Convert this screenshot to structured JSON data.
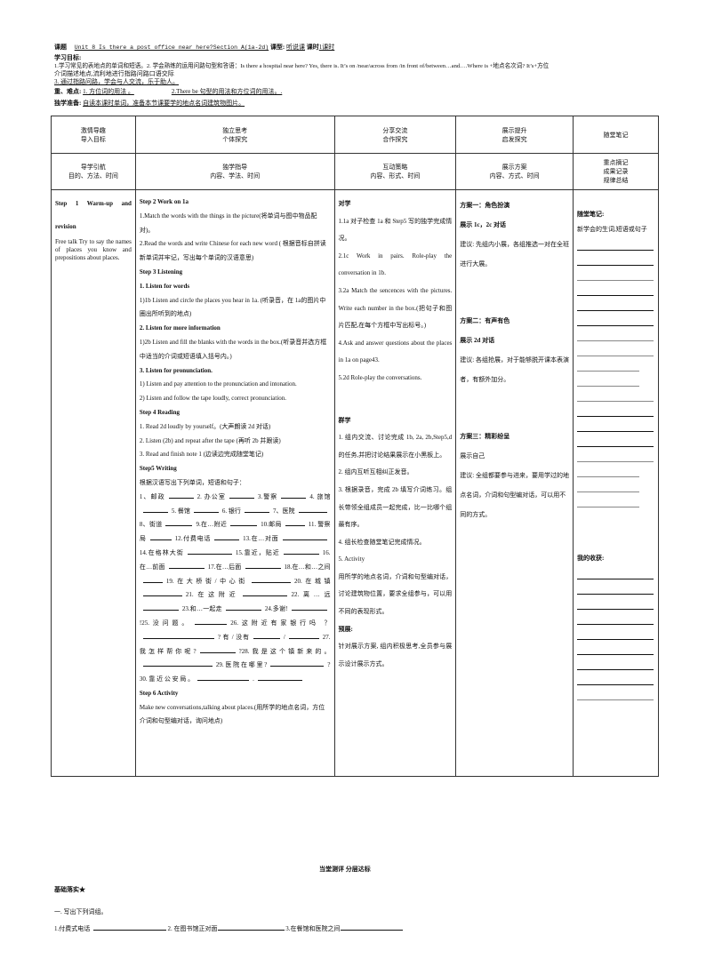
{
  "header": {
    "topic_label": "课题",
    "topic": "Unit 8 Is there a post office near here?Section A(1a-2d)",
    "type_label": "课型:",
    "type": "听说课",
    "period_label": "课时",
    "period": "1课时",
    "goals_label": "学习目标:",
    "goal_1": "1.学习常见的表地点的单词和短语。2. 学会熟练的运用问路句型和答语：Is there a hospital near here?    Yes, there is. It’s on /near/across  from /in front of/between…and.…Where  is +地点名次词? It’s+方位",
    "goal_1b": "介词描述地点,流利地进行指路问路口语交际",
    "goal_3": "3. 通过指路问路，学会与人交流，乐于助人。",
    "keypoints_label": "重、难点:",
    "keypoint_1": "1. 方位词的用法 。",
    "keypoint_2": "2.There be 句型的用法和方位词的用法。.",
    "prep_label": "独学准备:",
    "prep": "自读本课时单词，准备本节课要学的地点名词建筑物图片。"
  },
  "table": {
    "headers": [
      [
        "激情导趣",
        "导入目标"
      ],
      [
        "独立思考",
        "个体探究"
      ],
      [
        "分享交流",
        "合作探究"
      ],
      [
        "展示提升",
        "启发探究"
      ],
      [
        "随堂笔记"
      ]
    ],
    "subheaders": [
      [
        "导学引航",
        "目的、方法、时间"
      ],
      [
        "独学指导",
        "内容、学法、时间"
      ],
      [
        "互动策略",
        "内容、形式、时间"
      ],
      [
        "展示方案",
        "内容、方式、时间"
      ],
      [
        "重点摘记",
        "成果记录",
        "规律总结"
      ]
    ],
    "col1": {
      "step": "Step 1  Warm-up  and revision",
      "text": "Free talk    Try to say the names of places you know and prepositions about places."
    },
    "col2": [
      {
        "t": "Step 2 Work on 1a",
        "b": true
      },
      {
        "t": "1.Match the    words with the things in the picture(将单词与图中物品配对)。"
      },
      {
        "t": "2.Read the words and write Chinese for each new word ( 根据音标自拼读新单词并牢记，写出每个单词的汉语意思)"
      },
      {
        "t": "Step 3 Listening",
        "b": true
      },
      {
        "t": "1.    Listen for words",
        "b": true
      },
      {
        "t": "1)1b Listen and circle  the places you hear in 1a. (听录音，在 1a的图片中圈出所听到的地点)"
      },
      {
        "t": "2.    Listen for more information",
        "b": true
      },
      {
        "t": "1)2b Listen and fill the blanks with the words in the box.(听录音并选方框中适当的介词或短语填入括号内。)"
      },
      {
        "t": "3.    Listen for pronunciation.",
        "b": true
      },
      {
        "t": "1) Listen and pay attention to the pronunciation and intonation."
      },
      {
        "t": "2) Listen and follow the tape loudly, correct pronunciation."
      },
      {
        "t": "Step 4 Reading",
        "b": true
      },
      {
        "t": "1.    Read 2d loudly by yourself。(大声朗读 2d 对话)"
      },
      {
        "t": "2.    Listen (2b) and repeat after the tape (再听 2b 并跟读)"
      },
      {
        "t": "3.    Read and finish note 1 (边读边完成随堂笔记)"
      },
      {
        "t": "Step5 Writing",
        "b": true
      },
      {
        "t": "根据汉语写出下列单词，短语和句子："
      }
    ],
    "writing": [
      "1、邮政",
      "2. 办公室",
      "3.警察",
      "4. 旅馆",
      "5. 餐馆",
      "6. 银行",
      "7、医院",
      "8、街道",
      "9.在…附近",
      "10.邮局",
      "11. 警察局",
      "12.付费电话",
      "13.在…对面",
      "14.在格林大街",
      "15.靠近，贴近",
      "16.在…前面",
      "17.在…后面",
      "18.在…和…之间",
      "19.在大桥街/中心街",
      "20.在城镇",
      "21.在这附近",
      "22.离…远",
      "23.和…一起走",
      "24.多谢!",
      "!25.没问题。",
      "26.这附近有家银行吗 ？",
      "? 有 / 没有",
      "/",
      "27.我怎样帮你呢?",
      "?28.我是这个镇新来的。",
      "29. 医 院 在 哪 里 ?",
      "?30.   靠  近  公  安  局  。",
      "."
    ],
    "step6": {
      "title": "Step 6 Activity",
      "text": "Make new conversations,talking about places.(用所学的地点名词，方位介词和句型编对话，询问地点)"
    },
    "col3": [
      "对学",
      "1.1a 对子检查 1a 和 Step5 写的独学完成情况。",
      "2.1c  Work  in  pairs.  Role-play  the conversation in 1b.",
      "3.2a  Match  the  sencences  with  the pictures. Write each    number in the box.(把句子和图片匹配,在每个方框中写出标号。)",
      "4.Ask  and  answer  questions  about  the places in 1a on page43.",
      "5.2d    Role-play the conversations.",
      "群学",
      "1. 组内交流、讨论完成 1b, 2a, 2b,Step5,d 的任务,并把讨论结果展示在小黑板上。",
      "2. 组内互听互相纠正发音。",
      "3. 根据录音，完成 2b 填写介词练习。组长带领全组成员一起完成，比一比哪个组最有序。",
      "4. 组长检查随堂笔记完成情况。",
      "5. Activity",
      "用所学的地点名词，介词和句型编对话，讨论建筑物位置，要求全组参与，可以用不同的表现形式。",
      "预展:",
      "针对展示方案, 组内积极思考,全员参与展示设计展示方式。"
    ],
    "col4": [
      {
        "title": "方案一：角色扮演",
        "show": "展示 1c，2c 对话",
        "advice": "建议: 先组内小展，各组推选一对在全班进行大展。"
      },
      {
        "title": "方案二：有声有色",
        "show": "展示 2d 对话",
        "advice": "建议: 各组抢展，对于能够脱开课本表演者，有额外加分。"
      },
      {
        "title": "方案三：精彩纷呈",
        "show": "展示自己",
        "advice": "建议: 全组都要参与进来，要用学过的地点名词，介词和句型编对话，可以用不同的方式。"
      }
    ],
    "col5": {
      "notes_title": "随堂笔记:",
      "notes_text": "新学会的生词,短语或句子",
      "harvest_title": "我的收获:"
    }
  },
  "footer": {
    "section_title": "当堂测评    分层达标",
    "level": "基础落实★",
    "q_title": "一. 写出下列词组。",
    "items": [
      "1.付费式电话",
      "2. 在图书馆正对面",
      "3.在餐馆和医院之间"
    ]
  }
}
